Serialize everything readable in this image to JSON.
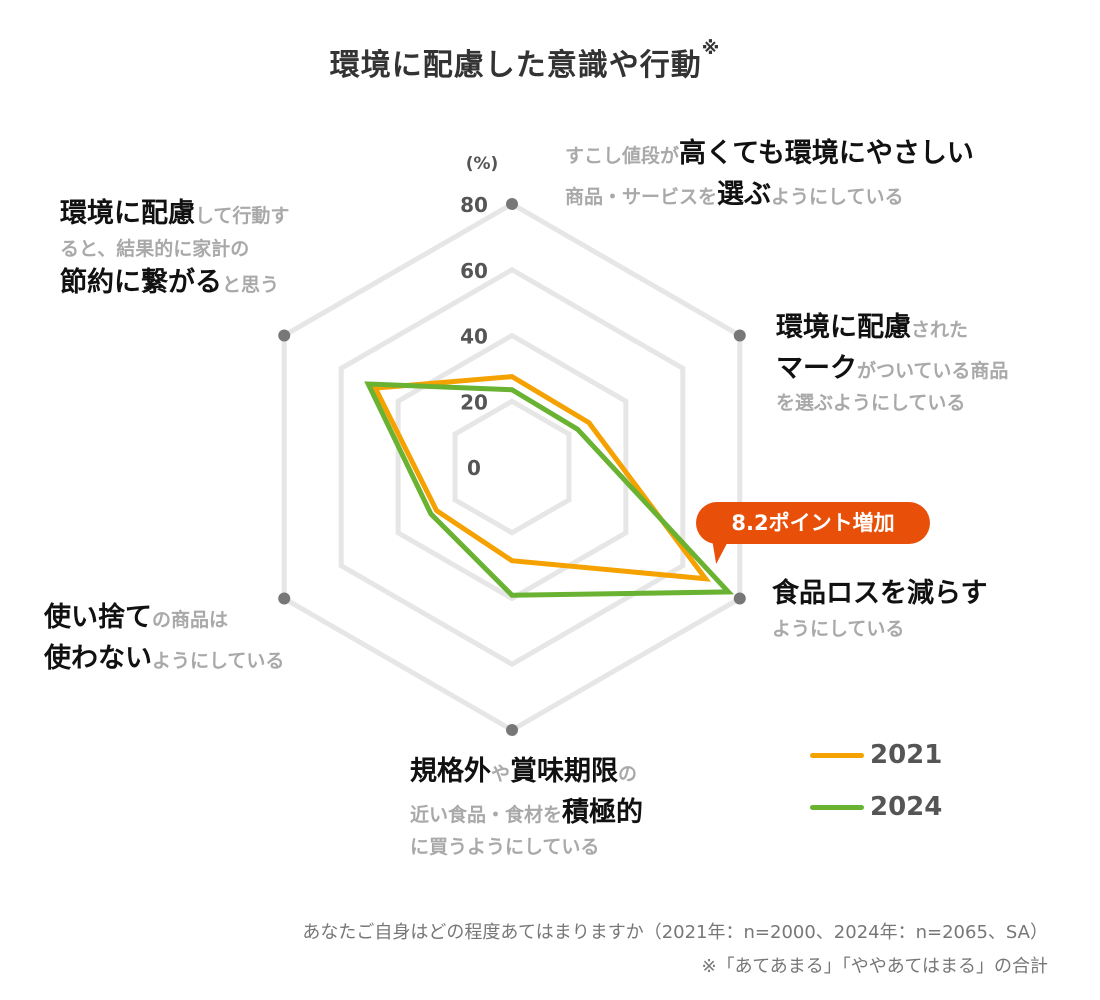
{
  "title": "環境に配慮した意識や行動",
  "title_mark": "※",
  "chart_data": {
    "type": "radar",
    "unit": "(%)",
    "rlim": [
      0,
      80
    ],
    "ticks": [
      0,
      20,
      40,
      60,
      80
    ],
    "categories": [
      "すこし値段が高くても環境にやさしい商品・サービスを選ぶようにしている",
      "環境に配慮されたマークがついている商品を選ぶようにしている",
      "食品ロスを減らすようにしている",
      "規格外や賞味期限の近い食品・食材を積極的に買うようにしている",
      "使い捨ての商品は使わないようにしている",
      "環境に配慮して行動すると、結果的に家計の節約に繋がると思う"
    ],
    "series": [
      {
        "name": "2021",
        "color": "#f5a200",
        "values": [
          27.5,
          27,
          68,
          28.5,
          26.5,
          48
        ]
      },
      {
        "name": "2024",
        "color": "#6ab232",
        "values": [
          23.5,
          23,
          76,
          39,
          28.5,
          50.5
        ]
      }
    ],
    "grid": true,
    "legend_position": "bottom-right"
  },
  "axis_labels": [
    {
      "parts": [
        [
          "small",
          "すこし値段が"
        ],
        [
          "big",
          "高くても環境にやさしい"
        ],
        [
          "br",
          ""
        ],
        [
          "small",
          "商品・サービスを"
        ],
        [
          "big",
          "選ぶ"
        ],
        [
          "small",
          "ようにしている"
        ]
      ]
    },
    {
      "parts": [
        [
          "big",
          "環境に配慮"
        ],
        [
          "small",
          "された"
        ],
        [
          "br",
          ""
        ],
        [
          "big",
          "マーク"
        ],
        [
          "small",
          "がついている商品"
        ],
        [
          "br",
          ""
        ],
        [
          "small",
          "を選ぶようにしている"
        ]
      ]
    },
    {
      "parts": [
        [
          "big",
          "食品ロスを減らす"
        ],
        [
          "br",
          ""
        ],
        [
          "small",
          "ようにしている"
        ]
      ]
    },
    {
      "parts": [
        [
          "big",
          "規格外"
        ],
        [
          "small",
          "や"
        ],
        [
          "big",
          "賞味期限"
        ],
        [
          "small",
          "の"
        ],
        [
          "br",
          ""
        ],
        [
          "small",
          "近い食品・食材を"
        ],
        [
          "big",
          "積極的"
        ],
        [
          "br",
          ""
        ],
        [
          "small",
          "に買うようにしている"
        ]
      ]
    },
    {
      "parts": [
        [
          "big",
          "使い捨て"
        ],
        [
          "small",
          "の商品は"
        ],
        [
          "br",
          ""
        ],
        [
          "big",
          "使わない"
        ],
        [
          "small",
          "ようにしている"
        ]
      ]
    },
    {
      "parts": [
        [
          "big",
          "環境に配慮"
        ],
        [
          "small",
          "して行動す"
        ],
        [
          "br",
          ""
        ],
        [
          "small",
          "ると、結果的に家計の"
        ],
        [
          "br",
          ""
        ],
        [
          "big",
          "節約に繋がる"
        ],
        [
          "small",
          "と思う"
        ]
      ]
    }
  ],
  "callout": "8.2ポイント増加",
  "footnote_1": "あなたご自身はどの程度あてはまりますか（2021年：n=2000、2024年：n=2065、SA）",
  "footnote_2": "※「あてあまる」「ややあてはまる」の合計",
  "colors": {
    "grid": "#e6e6e6",
    "axis_dot": "#777777",
    "tick_text": "#555555",
    "callout": "#e8500a"
  }
}
